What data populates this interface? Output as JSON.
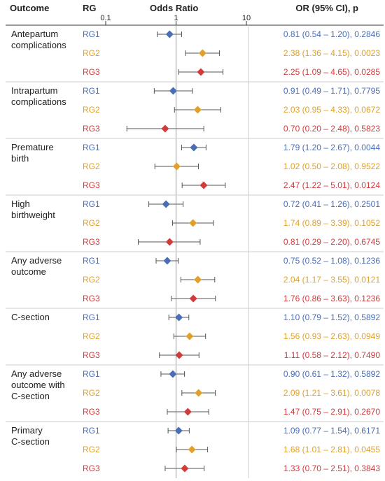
{
  "colors": {
    "RG1": "#4a6db5",
    "RG2": "#e0a02a",
    "RG3": "#d33a3a",
    "line": "#555555",
    "grid": "#cccccc"
  },
  "headers": {
    "outcome": "Outcome",
    "rg": "RG",
    "or": "Odds Ratio",
    "stats": "OR (95% CI), p"
  },
  "chart_data": {
    "type": "forest",
    "x_scale": "log",
    "xlim": [
      0.1,
      10
    ],
    "x_ticks": [
      {
        "value": 0.1,
        "label": "0.1"
      },
      {
        "value": 1,
        "label": "1"
      },
      {
        "value": 10,
        "label": "10"
      }
    ],
    "reference_line": 1,
    "groups": [
      {
        "outcome": [
          "Antepartum",
          "complications"
        ],
        "rows": [
          {
            "rg": "RG1",
            "or": 0.81,
            "lo": 0.54,
            "hi": 1.2,
            "text": "0.81 (0.54 – 1.20), 0.2846"
          },
          {
            "rg": "RG2",
            "or": 2.38,
            "lo": 1.36,
            "hi": 4.15,
            "text": "2.38 (1.36 – 4.15), 0.0023"
          },
          {
            "rg": "RG3",
            "or": 2.25,
            "lo": 1.09,
            "hi": 4.65,
            "text": "2.25 (1.09 – 4.65), 0.0285"
          }
        ]
      },
      {
        "outcome": [
          "Intrapartum",
          "complications"
        ],
        "rows": [
          {
            "rg": "RG1",
            "or": 0.91,
            "lo": 0.49,
            "hi": 1.71,
            "text": "0.91 (0.49 – 1.71), 0.7795"
          },
          {
            "rg": "RG2",
            "or": 2.03,
            "lo": 0.95,
            "hi": 4.33,
            "text": "2.03 (0.95 – 4.33), 0.0672"
          },
          {
            "rg": "RG3",
            "or": 0.7,
            "lo": 0.2,
            "hi": 2.48,
            "text": "0.70 (0.20 – 2.48), 0.5823"
          }
        ]
      },
      {
        "outcome": [
          "Premature",
          "birth"
        ],
        "rows": [
          {
            "rg": "RG1",
            "or": 1.79,
            "lo": 1.2,
            "hi": 2.67,
            "text": "1.79 (1.20 – 2.67), 0.0044"
          },
          {
            "rg": "RG2",
            "or": 1.02,
            "lo": 0.5,
            "hi": 2.08,
            "text": "1.02 (0.50 – 2.08), 0.9522"
          },
          {
            "rg": "RG3",
            "or": 2.47,
            "lo": 1.22,
            "hi": 5.01,
            "text": "2.47 (1.22 – 5.01), 0.0124"
          }
        ]
      },
      {
        "outcome": [
          "High",
          "birthweight"
        ],
        "rows": [
          {
            "rg": "RG1",
            "or": 0.72,
            "lo": 0.41,
            "hi": 1.26,
            "text": "0.72 (0.41 – 1.26), 0.2501"
          },
          {
            "rg": "RG2",
            "or": 1.74,
            "lo": 0.89,
            "hi": 3.39,
            "text": "1.74 (0.89 – 3.39), 0.1052"
          },
          {
            "rg": "RG3",
            "or": 0.81,
            "lo": 0.29,
            "hi": 2.2,
            "text": "0.81 (0.29 – 2.20), 0.6745"
          }
        ]
      },
      {
        "outcome": [
          "Any adverse",
          "outcome"
        ],
        "rows": [
          {
            "rg": "RG1",
            "or": 0.75,
            "lo": 0.52,
            "hi": 1.08,
            "text": "0.75 (0.52 – 1.08), 0.1236"
          },
          {
            "rg": "RG2",
            "or": 2.04,
            "lo": 1.17,
            "hi": 3.55,
            "text": "2.04 (1.17 – 3.55), 0.0121"
          },
          {
            "rg": "RG3",
            "or": 1.76,
            "lo": 0.86,
            "hi": 3.63,
            "text": "1.76 (0.86 – 3.63), 0.1236"
          }
        ]
      },
      {
        "outcome": [
          "C-section"
        ],
        "rows": [
          {
            "rg": "RG1",
            "or": 1.1,
            "lo": 0.79,
            "hi": 1.52,
            "text": "1.10 (0.79 – 1.52), 0.5892"
          },
          {
            "rg": "RG2",
            "or": 1.56,
            "lo": 0.93,
            "hi": 2.63,
            "text": "1.56 (0.93 – 2.63), 0.0949"
          },
          {
            "rg": "RG3",
            "or": 1.11,
            "lo": 0.58,
            "hi": 2.12,
            "text": "1.11 (0.58 – 2.12), 0.7490"
          }
        ]
      },
      {
        "outcome": [
          "Any adverse",
          "outcome with",
          "C-section"
        ],
        "rows": [
          {
            "rg": "RG1",
            "or": 0.9,
            "lo": 0.61,
            "hi": 1.32,
            "text": "0.90 (0.61 – 1.32), 0.5892"
          },
          {
            "rg": "RG2",
            "or": 2.09,
            "lo": 1.21,
            "hi": 3.61,
            "text": "2.09 (1.21 – 3.61), 0.0078"
          },
          {
            "rg": "RG3",
            "or": 1.47,
            "lo": 0.75,
            "hi": 2.91,
            "text": "1.47 (0.75 – 2.91), 0.2670"
          }
        ]
      },
      {
        "outcome": [
          "Primary",
          "C-section"
        ],
        "rows": [
          {
            "rg": "RG1",
            "or": 1.09,
            "lo": 0.77,
            "hi": 1.54,
            "text": "1.09 (0.77 – 1.54), 0.6171"
          },
          {
            "rg": "RG2",
            "or": 1.68,
            "lo": 1.01,
            "hi": 2.81,
            "text": "1.68 (1.01 – 2.81), 0.0455"
          },
          {
            "rg": "RG3",
            "or": 1.33,
            "lo": 0.7,
            "hi": 2.51,
            "text": "1.33 (0.70 – 2.51), 0.3843"
          }
        ]
      }
    ]
  }
}
